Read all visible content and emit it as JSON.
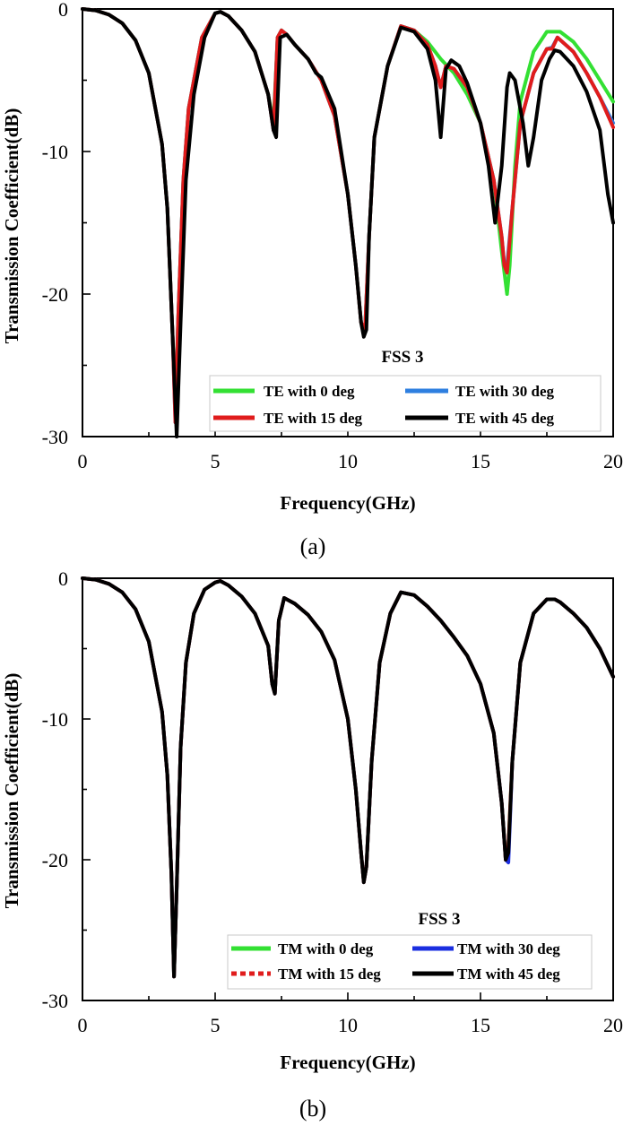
{
  "chart_data": [
    {
      "panel": "a",
      "type": "line",
      "caption": "(a)",
      "annotation": "FSS 3",
      "xlabel": "Frequency(GHz)",
      "ylabel": "Transmission Coefficient(dB)",
      "xlim": [
        0,
        20
      ],
      "ylim": [
        -30,
        0
      ],
      "xticks": [
        0,
        5,
        10,
        15,
        20
      ],
      "yticks": [
        0,
        -10,
        -20,
        -30
      ],
      "legend_position": "bottom-right",
      "series": [
        {
          "name": "TE with 0 deg",
          "color": "#33e033",
          "x": [
            0,
            0.5,
            1,
            1.5,
            2,
            2.5,
            3,
            3.2,
            3.4,
            3.5,
            3.6,
            3.8,
            4,
            4.5,
            5,
            5.2,
            5.5,
            6,
            6.5,
            7,
            7.2,
            7.35,
            7.5,
            7.7,
            8,
            8.5,
            9,
            9.5,
            10,
            10.3,
            10.5,
            10.65,
            10.8,
            11,
            11.5,
            12,
            12.5,
            13,
            13.5,
            14,
            14.5,
            15,
            15.5,
            15.8,
            16,
            16.1,
            16.3,
            16.5,
            17,
            17.5,
            18,
            18.5,
            19,
            19.5,
            20
          ],
          "y": [
            0,
            -0.1,
            -0.4,
            -1,
            -2.2,
            -4.5,
            -9.5,
            -14,
            -23,
            -28,
            -22,
            -12,
            -7,
            -2,
            -0.3,
            -0.2,
            -0.5,
            -1.5,
            -3,
            -6,
            -8,
            -2,
            -1.5,
            -1.8,
            -2.5,
            -3.5,
            -5,
            -7.5,
            -13,
            -18,
            -22,
            -22.5,
            -16,
            -9,
            -4,
            -1.2,
            -1.5,
            -2.3,
            -3.5,
            -4.5,
            -6,
            -8,
            -12,
            -17,
            -20,
            -18,
            -11,
            -6.5,
            -3,
            -1.6,
            -1.6,
            -2.3,
            -3.5,
            -5,
            -6.5
          ]
        },
        {
          "name": "TE with 30 deg",
          "color": "#2e7fe0",
          "x": [
            0,
            0.5,
            1,
            1.5,
            2,
            2.5,
            3,
            3.2,
            3.4,
            3.5,
            3.6,
            3.8,
            4,
            4.5,
            5,
            5.2,
            5.5,
            6,
            6.5,
            7,
            7.2,
            7.35,
            7.5,
            7.7,
            8,
            8.5,
            9,
            9.5,
            10,
            10.3,
            10.5,
            10.65,
            10.8,
            11,
            11.5,
            12,
            12.5,
            13,
            13.3,
            13.5,
            13.7,
            14,
            14.5,
            15,
            15.5,
            15.8,
            15.9,
            16,
            16.2,
            16.5,
            17,
            17.5,
            17.7,
            17.9,
            18.5,
            19,
            19.5,
            20
          ],
          "y": [
            0,
            -0.1,
            -0.4,
            -1,
            -2.2,
            -4.5,
            -9.5,
            -14,
            -23,
            -29,
            -22,
            -12,
            -7,
            -2,
            -0.3,
            -0.2,
            -0.5,
            -1.5,
            -3,
            -6,
            -8.5,
            -2,
            -1.5,
            -1.8,
            -2.5,
            -3.5,
            -5,
            -7.5,
            -13,
            -18,
            -22,
            -22.5,
            -16,
            -9,
            -4,
            -1.2,
            -1.5,
            -2.5,
            -4,
            -5.5,
            -4,
            -4.2,
            -5.5,
            -8,
            -12,
            -16,
            -18,
            -18,
            -14,
            -8,
            -4.5,
            -2.8,
            -2.7,
            -2,
            -3,
            -4.5,
            -6.2,
            -8
          ]
        },
        {
          "name": "TE with 15 deg",
          "color": "#e01c1c",
          "x": [
            0,
            0.5,
            1,
            1.5,
            2,
            2.5,
            3,
            3.2,
            3.4,
            3.5,
            3.6,
            3.8,
            4,
            4.5,
            5,
            5.2,
            5.5,
            6,
            6.5,
            7,
            7.2,
            7.35,
            7.5,
            7.7,
            8,
            8.5,
            9,
            9.5,
            10,
            10.3,
            10.5,
            10.65,
            10.8,
            11,
            11.5,
            12,
            12.5,
            13,
            13.3,
            13.5,
            13.7,
            14,
            14.5,
            15,
            15.5,
            15.8,
            15.9,
            16,
            16.2,
            16.5,
            17,
            17.5,
            17.7,
            17.9,
            18.5,
            19,
            19.5,
            20
          ],
          "y": [
            0,
            -0.1,
            -0.4,
            -1,
            -2.2,
            -4.5,
            -9.5,
            -14,
            -23,
            -29,
            -22,
            -12,
            -7,
            -2,
            -0.3,
            -0.2,
            -0.5,
            -1.5,
            -3,
            -6,
            -8.5,
            -2,
            -1.5,
            -1.8,
            -2.5,
            -3.5,
            -5,
            -7.5,
            -13,
            -18,
            -22,
            -22.5,
            -16,
            -9,
            -4,
            -1.2,
            -1.5,
            -2.5,
            -4,
            -5.5,
            -4,
            -4.2,
            -5.5,
            -8,
            -12,
            -16,
            -18,
            -18.5,
            -14,
            -8,
            -4.5,
            -2.8,
            -2.8,
            -2,
            -3,
            -4.5,
            -6.2,
            -8.3
          ]
        },
        {
          "name": "TE with 45 deg",
          "color": "#000000",
          "x": [
            0,
            0.5,
            1,
            1.5,
            2,
            2.5,
            3,
            3.2,
            3.4,
            3.55,
            3.7,
            3.9,
            4.2,
            4.6,
            5,
            5.2,
            5.5,
            6,
            6.5,
            7,
            7.2,
            7.3,
            7.45,
            7.7,
            8,
            8.5,
            8.8,
            9,
            9.5,
            10,
            10.3,
            10.5,
            10.6,
            10.7,
            10.8,
            11,
            11.5,
            12,
            12.5,
            13,
            13.3,
            13.5,
            13.7,
            13.9,
            14.2,
            14.5,
            15,
            15.3,
            15.55,
            15.8,
            16,
            16.1,
            16.3,
            16.6,
            16.8,
            17,
            17.3,
            17.6,
            17.8,
            18,
            18.5,
            19,
            19.5,
            19.8,
            20
          ],
          "y": [
            0,
            -0.1,
            -0.4,
            -1,
            -2.2,
            -4.5,
            -9.5,
            -14,
            -23,
            -30,
            -22,
            -12,
            -6,
            -2,
            -0.3,
            -0.2,
            -0.5,
            -1.5,
            -3,
            -6,
            -8.5,
            -9,
            -2,
            -1.8,
            -2.5,
            -3.5,
            -4.5,
            -4.8,
            -7,
            -13,
            -18,
            -22,
            -23,
            -22.5,
            -16,
            -9,
            -4,
            -1.3,
            -1.6,
            -2.8,
            -5,
            -9,
            -4.2,
            -3.6,
            -4,
            -5.2,
            -8,
            -11,
            -15,
            -11,
            -5.5,
            -4.5,
            -5,
            -8,
            -11,
            -9,
            -5,
            -3.5,
            -2.9,
            -3,
            -4,
            -5.8,
            -8.5,
            -13,
            -15
          ]
        }
      ]
    },
    {
      "panel": "b",
      "type": "line",
      "caption": "(b)",
      "annotation": "FSS 3",
      "xlabel": "Frequency(GHz)",
      "ylabel": "Transmission Coefficient(dB)",
      "xlim": [
        0,
        20
      ],
      "ylim": [
        -30,
        0
      ],
      "xticks": [
        0,
        5,
        10,
        15,
        20
      ],
      "yticks": [
        0,
        -10,
        -20,
        -30
      ],
      "legend_position": "bottom-right",
      "series": [
        {
          "name": "TM with 0 deg",
          "color": "#33e033",
          "x": [
            0,
            0.5,
            1,
            1.5,
            2,
            2.5,
            3,
            3.2,
            3.35,
            3.45,
            3.55,
            3.7,
            3.9,
            4.2,
            4.6,
            5,
            5.2,
            5.5,
            6,
            6.5,
            7,
            7.15,
            7.25,
            7.4,
            7.6,
            8,
            8.5,
            9,
            9.5,
            10,
            10.3,
            10.5,
            10.6,
            10.7,
            10.9,
            11.2,
            11.6,
            12,
            12.5,
            13,
            13.5,
            14,
            14.5,
            15,
            15.5,
            15.8,
            15.95,
            16.05,
            16.2,
            16.5,
            17,
            17.5,
            17.8,
            18,
            18.5,
            19,
            19.5,
            20
          ],
          "y": [
            0,
            -0.1,
            -0.4,
            -1,
            -2.2,
            -4.5,
            -9.5,
            -14,
            -21,
            -28.3,
            -22,
            -12,
            -6,
            -2.5,
            -0.8,
            -0.3,
            -0.2,
            -0.5,
            -1.3,
            -2.5,
            -4.8,
            -7.5,
            -8.2,
            -3,
            -1.4,
            -1.8,
            -2.6,
            -3.8,
            -5.8,
            -10,
            -15,
            -19.5,
            -21.6,
            -20.5,
            -13,
            -6,
            -2.5,
            -1,
            -1.2,
            -2,
            -3,
            -4.2,
            -5.5,
            -7.5,
            -11,
            -16,
            -20,
            -19,
            -13,
            -6,
            -2.5,
            -1.5,
            -1.5,
            -1.7,
            -2.5,
            -3.5,
            -5,
            -7
          ]
        },
        {
          "name": "TM with 30 deg",
          "color": "#1a2ee0",
          "x": [
            0,
            0.5,
            1,
            1.5,
            2,
            2.5,
            3,
            3.2,
            3.35,
            3.45,
            3.55,
            3.7,
            3.9,
            4.2,
            4.6,
            5,
            5.2,
            5.5,
            6,
            6.5,
            7,
            7.15,
            7.25,
            7.4,
            7.6,
            8,
            8.5,
            9,
            9.5,
            10,
            10.3,
            10.5,
            10.6,
            10.7,
            10.9,
            11.2,
            11.6,
            12,
            12.5,
            13,
            13.5,
            14,
            14.5,
            15,
            15.5,
            15.8,
            15.95,
            16.05,
            16.2,
            16.5,
            17,
            17.5,
            17.8,
            18,
            18.5,
            19,
            19.5,
            20
          ],
          "y": [
            0,
            -0.1,
            -0.4,
            -1,
            -2.2,
            -4.5,
            -9.5,
            -14,
            -21,
            -28.3,
            -22,
            -12,
            -6,
            -2.5,
            -0.8,
            -0.3,
            -0.2,
            -0.5,
            -1.3,
            -2.5,
            -4.8,
            -7.5,
            -8.2,
            -3,
            -1.4,
            -1.8,
            -2.6,
            -3.8,
            -5.8,
            -10,
            -15,
            -19.5,
            -21.6,
            -20.5,
            -13,
            -6,
            -2.5,
            -1,
            -1.2,
            -2,
            -3,
            -4.2,
            -5.5,
            -7.5,
            -11,
            -16,
            -20,
            -20.2,
            -13,
            -6,
            -2.5,
            -1.5,
            -1.5,
            -1.7,
            -2.5,
            -3.5,
            -5,
            -7
          ]
        },
        {
          "name": "TM with 15 deg",
          "color": "#e01c1c",
          "x": [
            0,
            0.5,
            1,
            1.5,
            2,
            2.5,
            3,
            3.2,
            3.35,
            3.45,
            3.55,
            3.7,
            3.9,
            4.2,
            4.6,
            5,
            5.2,
            5.5,
            6,
            6.5,
            7,
            7.15,
            7.25,
            7.4,
            7.6,
            8,
            8.5,
            9,
            9.5,
            10,
            10.3,
            10.5,
            10.6,
            10.7,
            10.9,
            11.2,
            11.6,
            12,
            12.5,
            13,
            13.5,
            14,
            14.5,
            15,
            15.5,
            15.8,
            15.95,
            16.05,
            16.2,
            16.5,
            17,
            17.5,
            17.8,
            18,
            18.5,
            19,
            19.5,
            20
          ],
          "y": [
            0,
            -0.1,
            -0.4,
            -1,
            -2.2,
            -4.5,
            -9.5,
            -14,
            -21,
            -28.3,
            -22,
            -12,
            -6,
            -2.5,
            -0.8,
            -0.3,
            -0.2,
            -0.5,
            -1.3,
            -2.5,
            -4.8,
            -7.5,
            -8.2,
            -3,
            -1.4,
            -1.8,
            -2.6,
            -3.8,
            -5.8,
            -10,
            -15,
            -19.5,
            -21.6,
            -20.5,
            -13,
            -6,
            -2.5,
            -1,
            -1.2,
            -2,
            -3,
            -4.2,
            -5.5,
            -7.5,
            -11,
            -16,
            -20,
            -19,
            -13,
            -6,
            -2.5,
            -1.5,
            -1.5,
            -1.7,
            -2.5,
            -3.5,
            -5,
            -7
          ]
        },
        {
          "name": "TM with 45 deg",
          "color": "#000000",
          "x": [
            0,
            0.5,
            1,
            1.5,
            2,
            2.5,
            3,
            3.2,
            3.35,
            3.45,
            3.55,
            3.7,
            3.9,
            4.2,
            4.6,
            5,
            5.2,
            5.5,
            6,
            6.5,
            7,
            7.15,
            7.25,
            7.4,
            7.6,
            8,
            8.5,
            9,
            9.5,
            10,
            10.3,
            10.5,
            10.6,
            10.7,
            10.9,
            11.2,
            11.6,
            12,
            12.5,
            13,
            13.5,
            14,
            14.5,
            15,
            15.5,
            15.8,
            15.95,
            16.05,
            16.2,
            16.5,
            17,
            17.5,
            17.8,
            18,
            18.5,
            19,
            19.5,
            20
          ],
          "y": [
            0,
            -0.1,
            -0.4,
            -1,
            -2.2,
            -4.5,
            -9.5,
            -14,
            -21,
            -28.3,
            -22,
            -12,
            -6,
            -2.5,
            -0.8,
            -0.3,
            -0.2,
            -0.5,
            -1.3,
            -2.5,
            -4.8,
            -7.5,
            -8.2,
            -3,
            -1.4,
            -1.8,
            -2.6,
            -3.8,
            -5.8,
            -10,
            -15,
            -19.5,
            -21.6,
            -20.5,
            -13,
            -6,
            -2.5,
            -1,
            -1.2,
            -2,
            -3,
            -4.2,
            -5.5,
            -7.5,
            -11,
            -16,
            -20,
            -19.5,
            -13,
            -6,
            -2.5,
            -1.5,
            -1.5,
            -1.7,
            -2.5,
            -3.5,
            -5,
            -7
          ]
        }
      ]
    }
  ]
}
